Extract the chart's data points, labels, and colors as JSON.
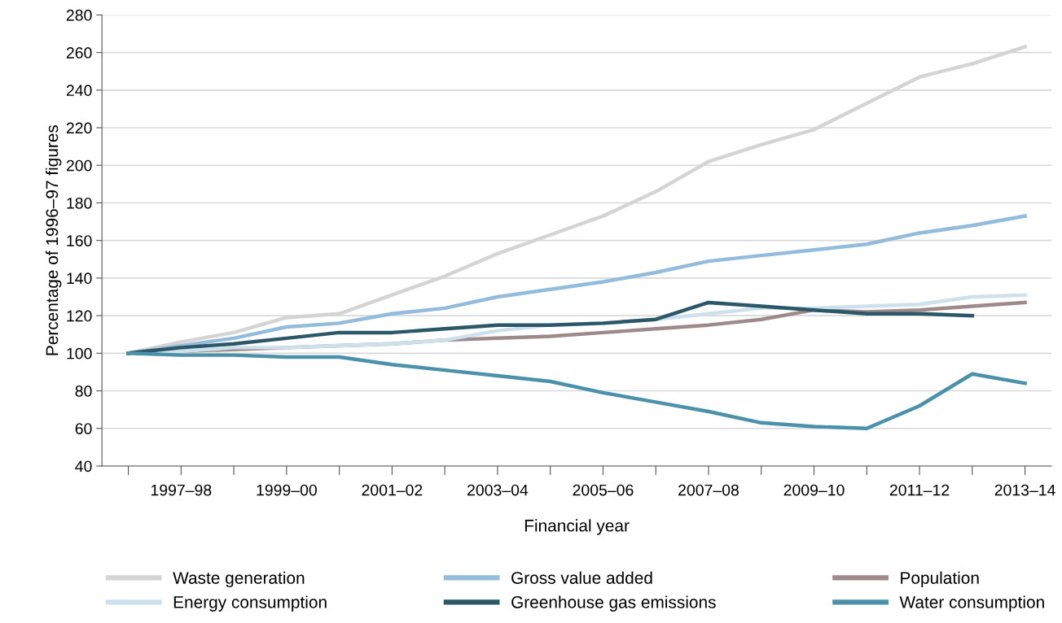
{
  "chart_data": {
    "type": "line",
    "xlabel": "Financial year",
    "ylabel": "Percentage of 1996–97 figures",
    "categories": [
      null,
      "1997–98",
      null,
      "1999–00",
      null,
      "2001–02",
      null,
      "2003–04",
      null,
      "2005–06",
      null,
      "2007–08",
      null,
      "2009–10",
      null,
      "2011–12",
      null,
      "2013–14"
    ],
    "ylim": [
      40,
      280
    ],
    "yticks": [
      40,
      60,
      80,
      100,
      120,
      140,
      160,
      180,
      200,
      220,
      240,
      260,
      280
    ],
    "grid": "y",
    "legend": "bottom",
    "marker": "none",
    "line_style": "solid",
    "series": [
      {
        "name": "Waste generation",
        "color": "#d4d4d4",
        "values": [
          100,
          106,
          111,
          119,
          121,
          131,
          141,
          153,
          163,
          173,
          186,
          202,
          211,
          219,
          233,
          247,
          254,
          263
        ]
      },
      {
        "name": "Gross value added",
        "color": "#93bbdb",
        "values": [
          100,
          104,
          108,
          114,
          116,
          121,
          124,
          130,
          134,
          138,
          143,
          149,
          152,
          155,
          158,
          164,
          168,
          173
        ]
      },
      {
        "name": "Population",
        "color": "#9e8a8b",
        "values": [
          100,
          101,
          102,
          103,
          104,
          105,
          107,
          108,
          109,
          111,
          113,
          115,
          118,
          123,
          122,
          123,
          125,
          127
        ]
      },
      {
        "name": "Energy consumption",
        "color": "#cde0ee",
        "values": [
          100,
          101,
          103,
          103,
          104,
          105,
          107,
          112,
          115,
          116,
          118,
          121,
          124,
          124,
          125,
          126,
          130,
          131
        ]
      },
      {
        "name": "Greenhouse gas emissions",
        "color": "#2b5769",
        "values": [
          100,
          103,
          105,
          108,
          111,
          111,
          113,
          115,
          115,
          116,
          118,
          127,
          125,
          123,
          121,
          121,
          120,
          null
        ]
      },
      {
        "name": "Water consumption",
        "color": "#4a91a9",
        "values": [
          100,
          99,
          99,
          98,
          98,
          94,
          91,
          88,
          85,
          79,
          74,
          69,
          63,
          61,
          60,
          72,
          89,
          84
        ]
      }
    ]
  }
}
